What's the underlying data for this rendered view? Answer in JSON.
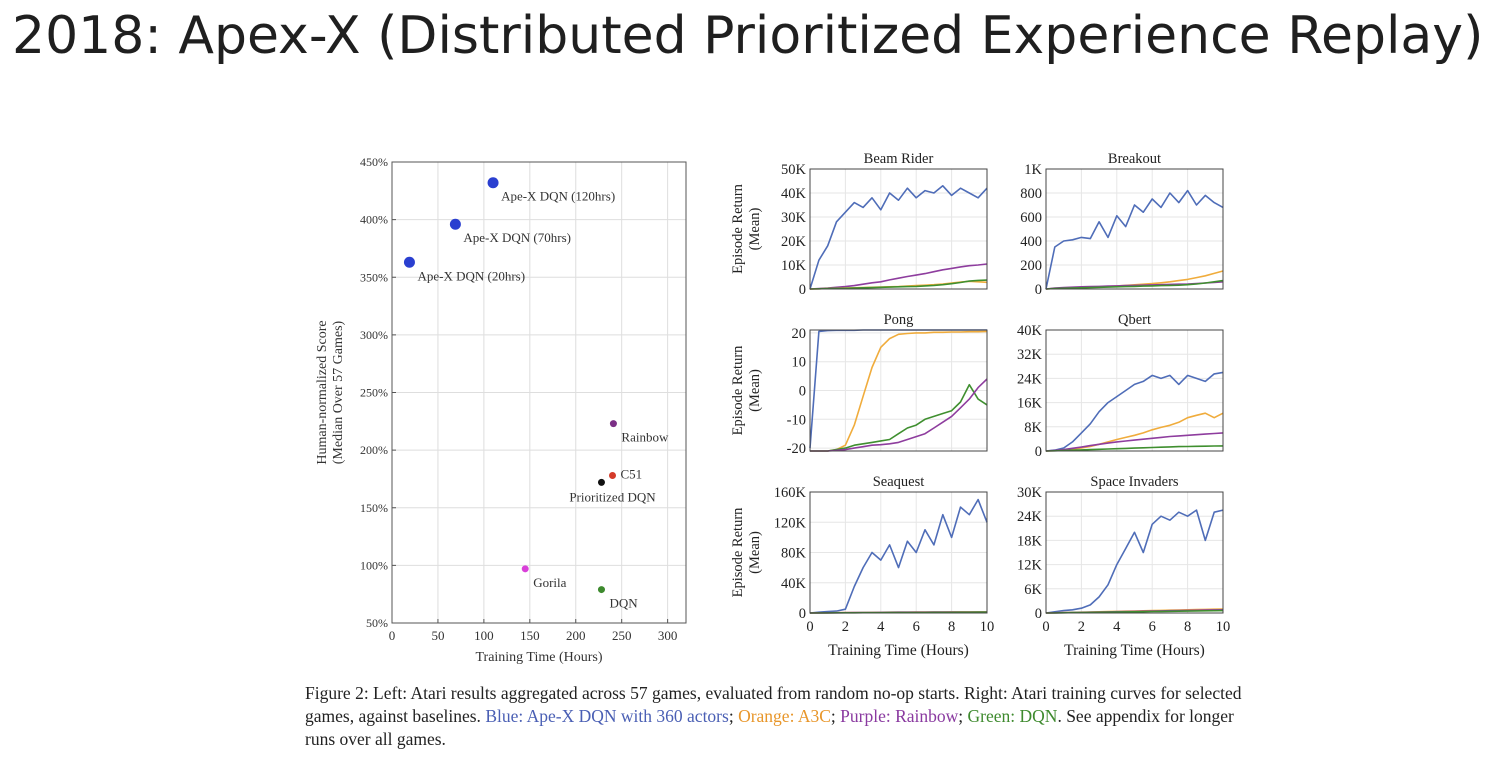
{
  "slide": {
    "title": "2018: Apex-X (Distributed Prioritized Experience Replay)"
  },
  "caption": {
    "p1": "Figure 2: Left: Atari results aggregated across 57 games, evaluated from random no-op starts. Right: Atari training curves for selected games, against baselines. ",
    "blue": "Blue: Ape-X DQN with 360 actors",
    "sep1": "; ",
    "orange": "Orange: A3C",
    "sep2": "; ",
    "purple": "Purple: Rainbow",
    "sep3": "; ",
    "green": "Green: DQN",
    "p2": ". See appendix for longer runs over all games."
  },
  "colors": {
    "blue": "#4f6db8",
    "orange": "#f0ac3c",
    "purple": "#8e3d9e",
    "green": "#3f8f2f",
    "text": "#333333"
  },
  "chart_data": [
    {
      "type": "scatter",
      "title": "",
      "xlabel": "Training Time (Hours)",
      "ylabel": "Human-normalized Score",
      "ylabel2": "(Median Over 57 Games)",
      "xlim": [
        0,
        320
      ],
      "ylim": [
        50,
        450
      ],
      "xticks": [
        0,
        50,
        100,
        150,
        200,
        250,
        300
      ],
      "xtick_labels": [
        "0",
        "50",
        "100",
        "150",
        "200",
        "250",
        "300"
      ],
      "yticks": [
        50,
        100,
        150,
        200,
        250,
        300,
        350,
        400,
        450
      ],
      "ytick_labels": [
        "50%",
        "100%",
        "150%",
        "200%",
        "250%",
        "300%",
        "350%",
        "400%",
        "450%"
      ],
      "grid": true,
      "points": [
        {
          "label": "Ape-X DQN (120hrs)",
          "x": 110,
          "y": 432,
          "color": "#2a3fd0",
          "big": true,
          "la": "right-below"
        },
        {
          "label": "Ape-X DQN (70hrs)",
          "x": 69,
          "y": 396,
          "color": "#2a3fd0",
          "big": true,
          "la": "right-below"
        },
        {
          "label": "Ape-X DQN (20hrs)",
          "x": 19,
          "y": 363,
          "color": "#2a3fd0",
          "big": true,
          "la": "right-below"
        },
        {
          "label": "Rainbow",
          "x": 241,
          "y": 223,
          "color": "#7b2f86",
          "big": false,
          "la": "right-below"
        },
        {
          "label": "C51",
          "x": 240,
          "y": 178,
          "color": "#d43b2a",
          "big": false,
          "la": "right"
        },
        {
          "label": "Prioritized DQN",
          "x": 228,
          "y": 172,
          "color": "#111111",
          "big": false,
          "la": "below"
        },
        {
          "label": "Gorila",
          "x": 145,
          "y": 97,
          "color": "#d93fd9",
          "big": false,
          "la": "right-below"
        },
        {
          "label": "DQN",
          "x": 228,
          "y": 79,
          "color": "#3d8a2e",
          "big": false,
          "la": "right-below"
        }
      ]
    },
    {
      "type": "line",
      "title": "Beam Rider",
      "ylabel": "Episode Return",
      "ylabel2": "(Mean)",
      "xlabel": "",
      "xlim": [
        0,
        10
      ],
      "ylim": [
        0,
        50000
      ],
      "yticks": [
        0,
        10000,
        20000,
        30000,
        40000,
        50000
      ],
      "ytick_labels": [
        "0",
        "10K",
        "20K",
        "30K",
        "40K",
        "50K"
      ],
      "xticks": [
        0,
        2,
        4,
        6,
        8,
        10
      ],
      "xtick_labels": [],
      "x": [
        0,
        0.5,
        1,
        1.5,
        2,
        2.5,
        3,
        3.5,
        4,
        4.5,
        5,
        5.5,
        6,
        6.5,
        7,
        7.5,
        8,
        8.5,
        9,
        9.5,
        10
      ],
      "series": [
        {
          "color": "blue",
          "values": [
            0,
            12000,
            18000,
            28000,
            32000,
            36000,
            34000,
            38000,
            33000,
            40000,
            37000,
            42000,
            38000,
            41000,
            40000,
            43000,
            39000,
            42000,
            40000,
            38000,
            42000
          ]
        },
        {
          "color": "purple",
          "values": [
            0,
            200,
            400,
            700,
            1000,
            1400,
            2000,
            2600,
            3000,
            3800,
            4500,
            5200,
            5800,
            6400,
            7200,
            8000,
            8600,
            9200,
            9700,
            10000,
            10400
          ]
        },
        {
          "color": "orange",
          "values": [
            0,
            100,
            200,
            300,
            400,
            500,
            600,
            700,
            800,
            900,
            1000,
            1200,
            1400,
            1600,
            1800,
            2100,
            2500,
            2900,
            3200,
            3000,
            2800
          ]
        },
        {
          "color": "green",
          "values": [
            0,
            100,
            200,
            250,
            300,
            400,
            500,
            600,
            700,
            800,
            900,
            1000,
            1100,
            1300,
            1500,
            1800,
            2200,
            2700,
            3300,
            3600,
            3700
          ]
        }
      ]
    },
    {
      "type": "line",
      "title": "Breakout",
      "ylabel": "",
      "xlabel": "",
      "xlim": [
        0,
        10
      ],
      "ylim": [
        0,
        1000
      ],
      "yticks": [
        0,
        200,
        400,
        600,
        800,
        1000
      ],
      "ytick_labels": [
        "0",
        "200",
        "400",
        "600",
        "800",
        "1K"
      ],
      "xticks": [
        0,
        2,
        4,
        6,
        8,
        10
      ],
      "xtick_labels": [],
      "x": [
        0,
        0.5,
        1,
        1.5,
        2,
        2.5,
        3,
        3.5,
        4,
        4.5,
        5,
        5.5,
        6,
        6.5,
        7,
        7.5,
        8,
        8.5,
        9,
        9.5,
        10
      ],
      "series": [
        {
          "color": "blue",
          "values": [
            0,
            350,
            400,
            410,
            430,
            420,
            560,
            430,
            610,
            520,
            700,
            640,
            750,
            680,
            800,
            720,
            820,
            700,
            780,
            720,
            680
          ]
        },
        {
          "color": "orange",
          "values": [
            0,
            5,
            8,
            10,
            12,
            15,
            18,
            22,
            26,
            30,
            35,
            40,
            45,
            52,
            60,
            70,
            80,
            95,
            110,
            130,
            150
          ]
        },
        {
          "color": "purple",
          "values": [
            0,
            8,
            12,
            15,
            18,
            20,
            22,
            24,
            26,
            28,
            30,
            32,
            34,
            36,
            38,
            40,
            42,
            46,
            50,
            55,
            60
          ]
        },
        {
          "color": "green",
          "values": [
            0,
            4,
            6,
            8,
            10,
            12,
            14,
            16,
            18,
            20,
            22,
            24,
            26,
            28,
            30,
            32,
            36,
            42,
            50,
            60,
            70
          ]
        }
      ]
    },
    {
      "type": "line",
      "title": "Pong",
      "ylabel": "Episode Return",
      "ylabel2": "(Mean)",
      "xlabel": "",
      "xlim": [
        0,
        10
      ],
      "ylim": [
        -21,
        21
      ],
      "yticks": [
        -20,
        -10,
        0,
        10,
        20
      ],
      "ytick_labels": [
        "-20",
        "-10",
        "0",
        "10",
        "20"
      ],
      "xticks": [
        0,
        2,
        4,
        6,
        8,
        10
      ],
      "xtick_labels": [],
      "x": [
        0,
        0.5,
        1,
        1.5,
        2,
        2.5,
        3,
        3.5,
        4,
        4.5,
        5,
        5.5,
        6,
        6.5,
        7,
        7.5,
        8,
        8.5,
        9,
        9.5,
        10
      ],
      "series": [
        {
          "color": "blue",
          "values": [
            -20,
            20.5,
            20.8,
            20.9,
            20.9,
            20.9,
            21,
            21,
            21,
            21,
            21,
            21,
            21,
            21,
            21,
            21,
            21,
            21,
            21,
            21,
            21
          ]
        },
        {
          "color": "orange",
          "values": [
            -21,
            -21,
            -21,
            -20.5,
            -19,
            -12,
            -2,
            8,
            15,
            18,
            19.5,
            19.8,
            20,
            20,
            20.2,
            20.2,
            20.3,
            20.3,
            20.4,
            20.4,
            20.5
          ]
        },
        {
          "color": "green",
          "values": [
            -21,
            -21,
            -21,
            -20.5,
            -20,
            -19,
            -18.5,
            -18,
            -17.5,
            -17,
            -15,
            -13,
            -12,
            -10,
            -9,
            -8,
            -7,
            -4,
            2,
            -3,
            -5
          ]
        },
        {
          "color": "purple",
          "values": [
            -21,
            -21,
            -21,
            -20.8,
            -20.5,
            -20,
            -19.5,
            -19,
            -18.8,
            -18.5,
            -18,
            -17,
            -16,
            -15,
            -13,
            -11,
            -9,
            -6,
            -3,
            1,
            4
          ]
        }
      ]
    },
    {
      "type": "line",
      "title": "Qbert",
      "ylabel": "",
      "xlabel": "",
      "xlim": [
        0,
        10
      ],
      "ylim": [
        0,
        40000
      ],
      "yticks": [
        0,
        8000,
        16000,
        24000,
        32000,
        40000
      ],
      "ytick_labels": [
        "0",
        "8K",
        "16K",
        "24K",
        "32K",
        "40K"
      ],
      "xticks": [
        0,
        2,
        4,
        6,
        8,
        10
      ],
      "xtick_labels": [],
      "x": [
        0,
        0.5,
        1,
        1.5,
        2,
        2.5,
        3,
        3.5,
        4,
        4.5,
        5,
        5.5,
        6,
        6.5,
        7,
        7.5,
        8,
        8.5,
        9,
        9.5,
        10
      ],
      "series": [
        {
          "color": "blue",
          "values": [
            0,
            300,
            1000,
            3000,
            6000,
            9000,
            13000,
            16000,
            18000,
            20000,
            22000,
            23000,
            25000,
            24000,
            25000,
            22000,
            25000,
            24000,
            23000,
            25500,
            26000
          ]
        },
        {
          "color": "orange",
          "values": [
            0,
            100,
            300,
            600,
            1000,
            1500,
            2200,
            3000,
            3800,
            4500,
            5200,
            6000,
            7000,
            7800,
            8500,
            9500,
            11000,
            11800,
            12500,
            11000,
            12500
          ]
        },
        {
          "color": "purple",
          "values": [
            0,
            200,
            500,
            900,
            1300,
            1800,
            2200,
            2600,
            3000,
            3300,
            3600,
            3900,
            4200,
            4500,
            4800,
            5000,
            5200,
            5400,
            5600,
            5800,
            6000
          ]
        },
        {
          "color": "green",
          "values": [
            0,
            80,
            150,
            250,
            350,
            450,
            550,
            650,
            750,
            850,
            950,
            1050,
            1150,
            1250,
            1350,
            1450,
            1500,
            1550,
            1600,
            1650,
            1700
          ]
        }
      ]
    },
    {
      "type": "line",
      "title": "Seaquest",
      "ylabel": "Episode Return",
      "ylabel2": "(Mean)",
      "xlabel": "Training Time (Hours)",
      "xlim": [
        0,
        10
      ],
      "ylim": [
        0,
        160000
      ],
      "yticks": [
        0,
        40000,
        80000,
        120000,
        160000
      ],
      "ytick_labels": [
        "0",
        "40K",
        "80K",
        "120K",
        "160K"
      ],
      "xticks": [
        0,
        2,
        4,
        6,
        8,
        10
      ],
      "xtick_labels": [
        "0",
        "2",
        "4",
        "6",
        "8",
        "10"
      ],
      "x": [
        0,
        0.5,
        1,
        1.5,
        2,
        2.5,
        3,
        3.5,
        4,
        4.5,
        5,
        5.5,
        6,
        6.5,
        7,
        7.5,
        8,
        8.5,
        9,
        9.5,
        10
      ],
      "series": [
        {
          "color": "blue",
          "values": [
            0,
            1000,
            2000,
            2500,
            5000,
            35000,
            60000,
            80000,
            70000,
            90000,
            60000,
            95000,
            80000,
            110000,
            90000,
            130000,
            100000,
            140000,
            130000,
            150000,
            120000
          ]
        },
        {
          "color": "orange",
          "values": [
            0,
            200,
            300,
            400,
            500,
            600,
            700,
            800,
            900,
            1000,
            1000,
            1100,
            1200,
            1200,
            1300,
            1300,
            1400,
            1400,
            1500,
            1500,
            1500
          ]
        },
        {
          "color": "purple",
          "values": [
            0,
            100,
            200,
            300,
            400,
            500,
            600,
            700,
            800,
            900,
            1000,
            1000,
            1100,
            1100,
            1200,
            1200,
            1200,
            1300,
            1300,
            1300,
            1300
          ]
        },
        {
          "color": "green",
          "values": [
            0,
            100,
            150,
            200,
            250,
            300,
            350,
            400,
            450,
            500,
            550,
            600,
            650,
            700,
            750,
            800,
            850,
            900,
            950,
            1000,
            1000
          ]
        }
      ]
    },
    {
      "type": "line",
      "title": "Space Invaders",
      "ylabel": "",
      "xlabel": "Training Time (Hours)",
      "xlim": [
        0,
        10
      ],
      "ylim": [
        0,
        30000
      ],
      "yticks": [
        0,
        6000,
        12000,
        18000,
        24000,
        30000
      ],
      "ytick_labels": [
        "0",
        "6K",
        "12K",
        "18K",
        "24K",
        "30K"
      ],
      "xticks": [
        0,
        2,
        4,
        6,
        8,
        10
      ],
      "xtick_labels": [
        "0",
        "2",
        "4",
        "6",
        "8",
        "10"
      ],
      "x": [
        0,
        0.5,
        1,
        1.5,
        2,
        2.5,
        3,
        3.5,
        4,
        4.5,
        5,
        5.5,
        6,
        6.5,
        7,
        7.5,
        8,
        8.5,
        9,
        9.5,
        10
      ],
      "series": [
        {
          "color": "blue",
          "values": [
            0,
            300,
            600,
            800,
            1200,
            2000,
            4000,
            7000,
            12000,
            16000,
            20000,
            15000,
            22000,
            24000,
            23000,
            25000,
            24000,
            25500,
            18000,
            25000,
            25500
          ]
        },
        {
          "color": "orange",
          "values": [
            0,
            50,
            100,
            150,
            200,
            250,
            300,
            350,
            400,
            450,
            500,
            550,
            600,
            650,
            700,
            750,
            800,
            850,
            900,
            950,
            1000
          ]
        },
        {
          "color": "purple",
          "values": [
            0,
            40,
            80,
            120,
            160,
            200,
            240,
            280,
            320,
            360,
            400,
            440,
            480,
            520,
            560,
            600,
            640,
            680,
            720,
            760,
            800
          ]
        },
        {
          "color": "green",
          "values": [
            0,
            30,
            60,
            90,
            120,
            150,
            180,
            210,
            240,
            270,
            300,
            330,
            360,
            390,
            420,
            450,
            480,
            510,
            540,
            570,
            600
          ]
        }
      ]
    }
  ]
}
